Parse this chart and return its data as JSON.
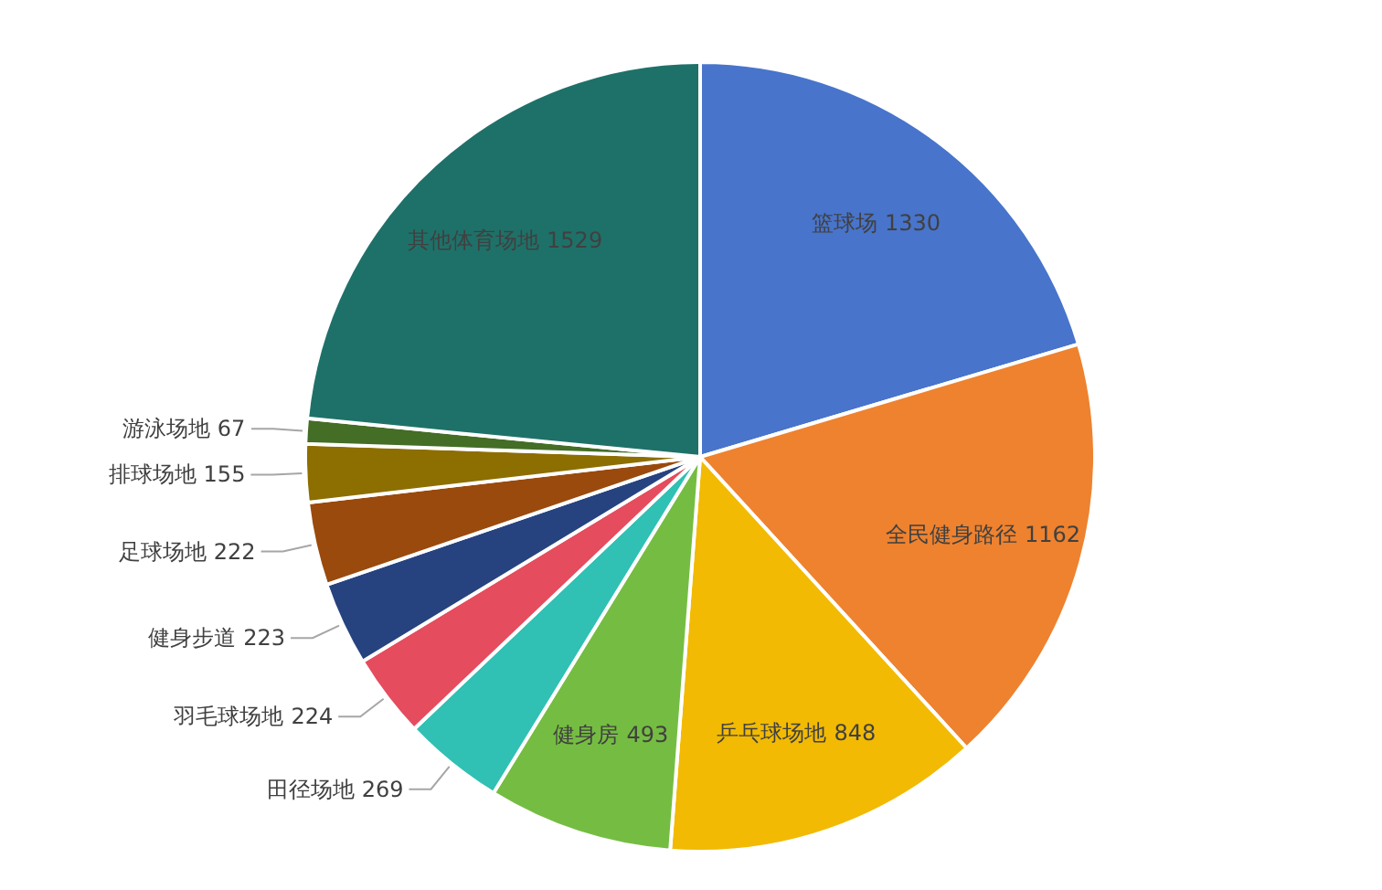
{
  "chart_data": {
    "type": "pie",
    "categories": [
      "篮球场",
      "全民健身路径",
      "乒乓球场地",
      "健身房",
      "田径场地",
      "羽毛球场地",
      "健身步道",
      "足球场地",
      "排球场地",
      "游泳场地",
      "其他体育场地"
    ],
    "values": [
      1330,
      1162,
      848,
      493,
      269,
      224,
      223,
      222,
      155,
      67,
      1529
    ],
    "colors": [
      "#4874cb",
      "#ee822f",
      "#f2ba02",
      "#75bd42",
      "#30c0b4",
      "#e54c5e",
      "#264380",
      "#9a4a0c",
      "#8d6e00",
      "#446d26",
      "#1e7169"
    ],
    "data_labels": true
  }
}
